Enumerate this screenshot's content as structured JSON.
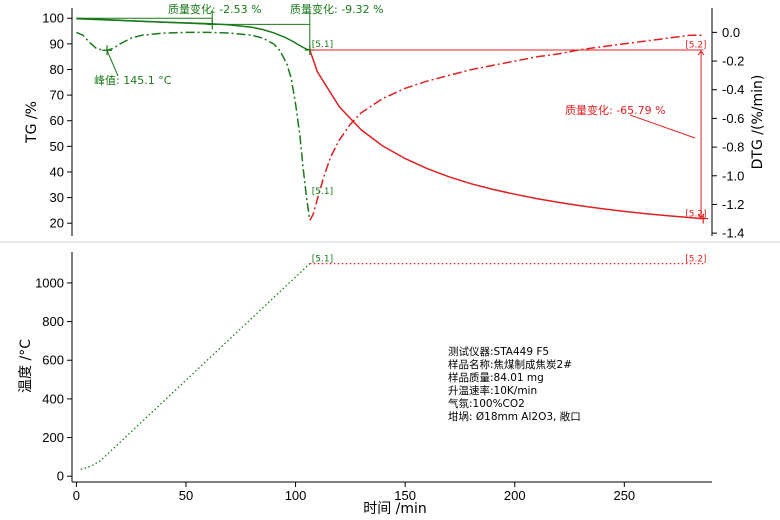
{
  "chart_data": [
    {
      "type": "line",
      "panel": "top",
      "xlabel": "",
      "ylabel": "TG /%",
      "y2label": "DTG /(%/min)",
      "xlim": [
        -2,
        290
      ],
      "ylim": [
        15,
        104
      ],
      "y2lim": [
        -1.42,
        0.17
      ],
      "yticks": [
        20,
        30,
        40,
        50,
        60,
        70,
        80,
        90,
        100
      ],
      "y2ticks": [
        0.0,
        -0.2,
        -0.4,
        -0.6,
        -0.8,
        -1.0,
        -1.2,
        -1.4
      ],
      "y2tick_labels": [
        "0.0",
        "-0.2",
        "-0.4",
        "-0.6",
        "-0.8",
        "-1.0",
        "-1.2",
        "-1.4"
      ],
      "series": [
        {
          "name": "TG",
          "axis": "left",
          "style": "solid",
          "segments": [
            {
              "color": "#1a7a1a",
              "x": [
                0,
                20,
                40,
                60,
                70,
                80,
                85,
                90,
                95,
                98,
                101,
                103,
                105,
                106.5
              ],
              "y": [
                100,
                99.2,
                98.5,
                97.9,
                97.4,
                96.5,
                95.6,
                94.3,
                92.6,
                91.3,
                89.8,
                88.8,
                87.9,
                87.6
              ]
            },
            {
              "color": "#e02020",
              "x": [
                106.5,
                110,
                120,
                130,
                140,
                150,
                160,
                170,
                180,
                190,
                200,
                210,
                220,
                230,
                240,
                250,
                260,
                270,
                280,
                286
              ],
              "y": [
                87.6,
                79,
                65.4,
                56.4,
                50,
                45.2,
                41.3,
                38.1,
                35.4,
                33.2,
                31.3,
                29.6,
                28.1,
                26.8,
                25.6,
                24.6,
                23.7,
                22.9,
                22.2,
                21.8
              ]
            }
          ]
        },
        {
          "name": "DTG",
          "axis": "right",
          "style": "dash-dot",
          "segments": [
            {
              "color": "#1a7a1a",
              "x": [
                0,
                3,
                6,
                9,
                12,
                14,
                17,
                20,
                25,
                30,
                40,
                50,
                60,
                70,
                80,
                85,
                90,
                93,
                96,
                98,
                100,
                102,
                103.5,
                105,
                106.5
              ],
              "y": [
                0.0,
                -0.02,
                -0.07,
                -0.11,
                -0.125,
                -0.125,
                -0.11,
                -0.08,
                -0.04,
                -0.02,
                -0.005,
                0.0,
                0.0,
                -0.005,
                -0.02,
                -0.04,
                -0.08,
                -0.13,
                -0.22,
                -0.32,
                -0.5,
                -0.72,
                -0.95,
                -1.15,
                -1.31
              ]
            },
            {
              "color": "#e02020",
              "x": [
                106.5,
                108,
                110,
                113,
                116,
                120,
                125,
                130,
                140,
                150,
                160,
                170,
                180,
                190,
                200,
                210,
                220,
                230,
                240,
                250,
                260,
                270,
                280,
                286
              ],
              "y": [
                -1.31,
                -1.27,
                -1.16,
                -1.0,
                -0.87,
                -0.75,
                -0.64,
                -0.56,
                -0.46,
                -0.39,
                -0.34,
                -0.3,
                -0.26,
                -0.23,
                -0.2,
                -0.17,
                -0.15,
                -0.12,
                -0.1,
                -0.08,
                -0.06,
                -0.04,
                -0.02,
                -0.02
              ]
            }
          ]
        }
      ],
      "annotations": [
        {
          "text": "质量变化: -2.53 %",
          "color": "#1a7a1a"
        },
        {
          "text": "质量变化: -9.32 %",
          "color": "#1a7a1a"
        },
        {
          "text": "峰值: 145.1 °C",
          "color": "#1a7a1a"
        },
        {
          "text": "质量变化: -65.79 %",
          "color": "#e02020"
        },
        {
          "text": "[5.1]",
          "color": "#1a7a1a"
        },
        {
          "text": "[5.1]",
          "color": "#1a7a1a"
        },
        {
          "text": "[5.2]",
          "color": "#e02020"
        },
        {
          "text": "[5.2]",
          "color": "#e02020"
        }
      ],
      "grid": false
    },
    {
      "type": "line",
      "panel": "bottom",
      "xlabel": "时间 /min",
      "ylabel": "温度 /°C",
      "xlim": [
        -2,
        290
      ],
      "ylim": [
        -30,
        1160
      ],
      "xticks": [
        0,
        50,
        100,
        150,
        200,
        250
      ],
      "yticks": [
        0,
        200,
        400,
        600,
        800,
        1000
      ],
      "series": [
        {
          "name": "温度",
          "style": "dotted",
          "segments": [
            {
              "color": "#1a7a1a",
              "x": [
                2,
                5,
                8,
                11,
                106.5
              ],
              "y": [
                35,
                45,
                60,
                80,
                1100
              ]
            },
            {
              "color": "#e02020",
              "x": [
                106.5,
                286
              ],
              "y": [
                1100,
                1100
              ]
            }
          ]
        }
      ],
      "annotations": [
        {
          "text": "[5.1]",
          "color": "#1a7a1a"
        },
        {
          "text": "[5.2]",
          "color": "#e02020"
        }
      ],
      "grid": false
    }
  ],
  "info_box": [
    "测试仪器:STA449 F5",
    "样品名称:焦煤制成焦炭2#",
    "样品质量:84.01 mg",
    "升温速率:10K/min",
    "气氛:100%CO2",
    "坩埚: Ø18mm Al2O3, 敞口"
  ]
}
